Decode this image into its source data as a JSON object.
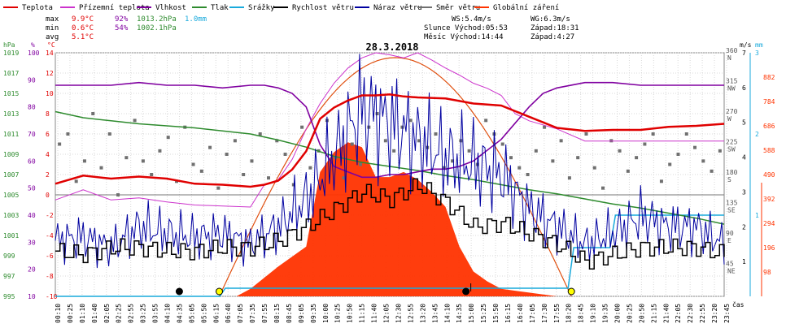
{
  "chart_data": {
    "type": "line",
    "title": "28.3.2018",
    "legend": [
      {
        "name": "Teplota",
        "color": "#e00000"
      },
      {
        "name": "Přízemní teplota",
        "color": "#cc33cc"
      },
      {
        "name": "Vlhkost",
        "color": "#8000a0"
      },
      {
        "name": "Tlak",
        "color": "#2e8b2e"
      },
      {
        "name": "Srážky",
        "color": "#19aadc"
      },
      {
        "name": "Rychlost větru",
        "color": "#000000"
      },
      {
        "name": "Náraz větru",
        "color": "#0000a0"
      },
      {
        "name": "Směr větru",
        "color": "#707070"
      },
      {
        "name": "Globální záření",
        "color": "#ff3300"
      }
    ],
    "stats": {
      "max": {
        "label": "max",
        "temp": "9.9°C",
        "hum": "92%",
        "press": "1013.2hPa",
        "rain": "1.0mm"
      },
      "min": {
        "label": "min",
        "temp": "0.6°C",
        "hum": "54%",
        "press": "1002.1hPa"
      },
      "avg": {
        "label": "avg",
        "temp": "5.1°C"
      }
    },
    "info": {
      "ws": "WS:5.4m/s",
      "wg": "WG:6.3m/s",
      "sun": "Slunce Východ:05:53",
      "sun_set": "Západ:18:31",
      "moon": "Měsíc Východ:14:44",
      "moon_set": "Západ:4:27"
    },
    "axes": {
      "hpa_label": "hPa",
      "hpa_ticks": [
        "1019",
        "1017",
        "1015",
        "1013",
        "1011",
        "1009",
        "1007",
        "1005",
        "1003",
        "1001",
        "999",
        "997",
        "995"
      ],
      "pct_label": "%",
      "pct_ticks": [
        "100",
        "90",
        "80",
        "70",
        "60",
        "50",
        "40",
        "30",
        "20",
        "10"
      ],
      "c_label": "°C",
      "c_ticks": [
        "14",
        "12",
        "10",
        "8",
        "6",
        "4",
        "2",
        "0",
        "-2",
        "-4",
        "-6",
        "-8",
        "-10"
      ],
      "dir_label": "m/s",
      "dir_ticks": [
        {
          "deg": "360",
          "name": "N"
        },
        {
          "deg": "315",
          "name": "NW"
        },
        {
          "deg": "270",
          "name": "W"
        },
        {
          "deg": "225",
          "name": "SW"
        },
        {
          "deg": "180",
          "name": "S"
        },
        {
          "deg": "135",
          "name": "SE"
        },
        {
          "deg": "90",
          "name": "E"
        },
        {
          "deg": "45",
          "name": "NE"
        }
      ],
      "ms_ticks": [
        "7",
        "6",
        "5",
        "4",
        "3",
        "2",
        "1"
      ],
      "mm_label": "mm",
      "mm_ticks": [
        "3",
        "2",
        "1"
      ],
      "wm2_ticks": [
        "882",
        "784",
        "686",
        "588",
        "490",
        "392",
        "294",
        "196",
        "98"
      ],
      "xlabel": "čas",
      "x_ticks": [
        "00:10",
        "00:25",
        "01:10",
        "01:40",
        "02:05",
        "02:25",
        "02:55",
        "03:25",
        "03:55",
        "04:10",
        "04:35",
        "05:05",
        "05:50",
        "06:15",
        "06:40",
        "07:05",
        "07:35",
        "07:55",
        "08:15",
        "08:45",
        "09:05",
        "09:35",
        "10:00",
        "10:25",
        "10:50",
        "11:15",
        "11:40",
        "12:05",
        "12:30",
        "12:55",
        "13:20",
        "13:45",
        "14:10",
        "14:35",
        "15:00",
        "15:25",
        "15:50",
        "16:15",
        "16:40",
        "17:05",
        "17:30",
        "17:55",
        "18:20",
        "18:45",
        "19:10",
        "19:35",
        "20:00",
        "20:25",
        "20:50",
        "21:15",
        "21:40",
        "22:05",
        "22:30",
        "22:55",
        "23:20",
        "23:45"
      ]
    },
    "series": [
      {
        "name": "Teplota",
        "hours": [
          0,
          1,
          2,
          3,
          4,
          5,
          6,
          7,
          7.5,
          8,
          8.5,
          9,
          9.5,
          10,
          10.5,
          11,
          11.5,
          12,
          12.5,
          13,
          14,
          15,
          16,
          17,
          18,
          19,
          20,
          21,
          22,
          23,
          24
        ],
        "values": [
          1.1,
          1.9,
          1.6,
          1.8,
          1.6,
          1.1,
          1.0,
          0.8,
          1.0,
          1.4,
          2.5,
          4.3,
          7.5,
          8.6,
          9.3,
          9.8,
          9.8,
          9.9,
          9.7,
          9.6,
          9.5,
          9.0,
          8.8,
          7.7,
          6.6,
          6.3,
          6.4,
          6.4,
          6.7,
          6.8,
          7.0
        ]
      },
      {
        "name": "Přízemní teplota",
        "hours": [
          0,
          1,
          2,
          3,
          4,
          5,
          6,
          7,
          7.5,
          8,
          8.5,
          9,
          9.5,
          10,
          10.5,
          11,
          11.5,
          12,
          12.5,
          13,
          13.5,
          14,
          14.5,
          15,
          15.5,
          16,
          16.5,
          17,
          18,
          19,
          20,
          21,
          22,
          23,
          24
        ],
        "values": [
          -0.5,
          0.5,
          -0.5,
          -0.3,
          -0.7,
          -1.0,
          -1.1,
          -1.2,
          1.0,
          1.5,
          3.5,
          6.5,
          9.0,
          11.0,
          12.5,
          13.5,
          14.0,
          13.8,
          13.5,
          14.0,
          13.3,
          12.5,
          11.8,
          11.0,
          10.5,
          9.8,
          8.0,
          7.3,
          6.5,
          5.3,
          5.3,
          5.3,
          5.3,
          5.3,
          5.3
        ]
      },
      {
        "name": "Vlhkost",
        "hours": [
          0,
          1,
          2,
          3,
          4,
          5,
          6,
          7,
          7.5,
          8,
          8.5,
          9,
          9.5,
          10,
          10.5,
          11,
          11.5,
          12,
          12.5,
          13,
          13.5,
          14,
          14.5,
          15,
          15.5,
          16,
          16.5,
          17,
          17.5,
          18,
          19,
          20,
          21,
          22,
          23,
          24
        ],
        "values": [
          88,
          88,
          88,
          89,
          88,
          88,
          87,
          88,
          88,
          87,
          85,
          80,
          66,
          58,
          56,
          54,
          54,
          55,
          55,
          56,
          57,
          57,
          58,
          60,
          64,
          68,
          74,
          80,
          85,
          87,
          89,
          89,
          88,
          88,
          88,
          88
        ]
      },
      {
        "name": "Tlak",
        "hours": [
          0,
          1,
          2,
          3,
          4,
          5,
          6,
          7,
          8,
          9,
          10,
          11,
          12,
          13,
          14,
          15,
          16,
          17,
          18,
          19,
          20,
          21,
          22,
          23,
          24
        ],
        "values": [
          1013.2,
          1012.6,
          1012.3,
          1012.0,
          1011.8,
          1011.6,
          1011.3,
          1011.0,
          1010.4,
          1009.7,
          1008.8,
          1008.2,
          1007.8,
          1007.4,
          1006.9,
          1006.5,
          1006.0,
          1005.5,
          1005.1,
          1004.6,
          1004.1,
          1003.7,
          1003.2,
          1002.7,
          1002.1
        ]
      },
      {
        "name": "Srážky",
        "hours": [
          0,
          5.9,
          6.1,
          18.4,
          18.6,
          19.9,
          20.1,
          24
        ],
        "values": [
          0,
          0,
          0.1,
          0.1,
          0.6,
          0.6,
          1.0,
          1.0
        ]
      },
      {
        "name": "Rychlost větru",
        "hours": [
          0,
          1,
          2,
          3,
          4,
          5,
          6,
          7,
          8,
          9,
          10,
          11,
          12,
          13,
          14,
          15,
          16,
          17,
          18,
          19,
          20,
          21,
          22,
          23,
          24
        ],
        "values": [
          1.3,
          1.2,
          1.4,
          1.4,
          1.3,
          1.3,
          1.4,
          1.4,
          1.6,
          2.0,
          2.5,
          3.0,
          2.8,
          3.2,
          2.7,
          2.0,
          2.1,
          1.8,
          1.5,
          1.0,
          1.2,
          1.4,
          1.4,
          1.4,
          1.2
        ]
      },
      {
        "name": "Náraz větru",
        "hours": [
          0,
          1,
          2,
          3,
          4,
          5,
          6,
          7,
          8,
          9,
          10,
          11,
          12,
          13,
          14,
          15,
          16,
          17,
          18,
          19,
          20,
          21,
          22,
          23,
          24
        ],
        "values": [
          1.6,
          1.7,
          1.4,
          2.0,
          1.8,
          1.7,
          1.8,
          1.5,
          2.0,
          2.8,
          4.0,
          5.4,
          5.0,
          4.5,
          4.0,
          3.8,
          3.5,
          2.5,
          2.0,
          1.5,
          1.8,
          2.3,
          2.0,
          2.0,
          1.5
        ]
      },
      {
        "name": "Globální záření",
        "hours": [
          0,
          6.5,
          7,
          8,
          9,
          9.5,
          10,
          10.5,
          11,
          11.5,
          12,
          12.5,
          13,
          13.5,
          14,
          14.5,
          15,
          15.5,
          16,
          17,
          18,
          24
        ],
        "values": [
          0,
          0,
          30,
          120,
          200,
          500,
          580,
          620,
          600,
          480,
          480,
          500,
          470,
          420,
          360,
          200,
          100,
          60,
          30,
          15,
          0,
          0
        ]
      }
    ],
    "wind_dir_deg": [
      225,
      240,
      170,
      200,
      270,
      190,
      240,
      150,
      205,
      260,
      200,
      180,
      215,
      235,
      170,
      250,
      195,
      185,
      220,
      160,
      210,
      230,
      180,
      200,
      240,
      175,
      230,
      210,
      165,
      250,
      190,
      215,
      260,
      205,
      175,
      225,
      195,
      250,
      270,
      230,
      215,
      250,
      260,
      230,
      220,
      240,
      190,
      200,
      230,
      215,
      195,
      260,
      240,
      225,
      205,
      190,
      180,
      215,
      250,
      200,
      230,
      175,
      205,
      240,
      190,
      160,
      230,
      215,
      185,
      205,
      225,
      240,
      170,
      195,
      210,
      240,
      220,
      200,
      185,
      215
    ],
    "sunrise_sun": "05:53",
    "sunset_sun": "18:31",
    "moonrise": "14:44",
    "moonset": "4:27",
    "ylim_temp": [
      -10,
      14
    ],
    "ylim_hum": [
      10,
      100
    ],
    "ylim_press": [
      995,
      1019
    ],
    "ylim_wind": [
      0,
      7
    ],
    "ylim_rain": [
      0,
      3
    ],
    "ylim_rad": [
      0,
      980
    ],
    "ylim_dir": [
      0,
      360
    ],
    "grid": true
  }
}
